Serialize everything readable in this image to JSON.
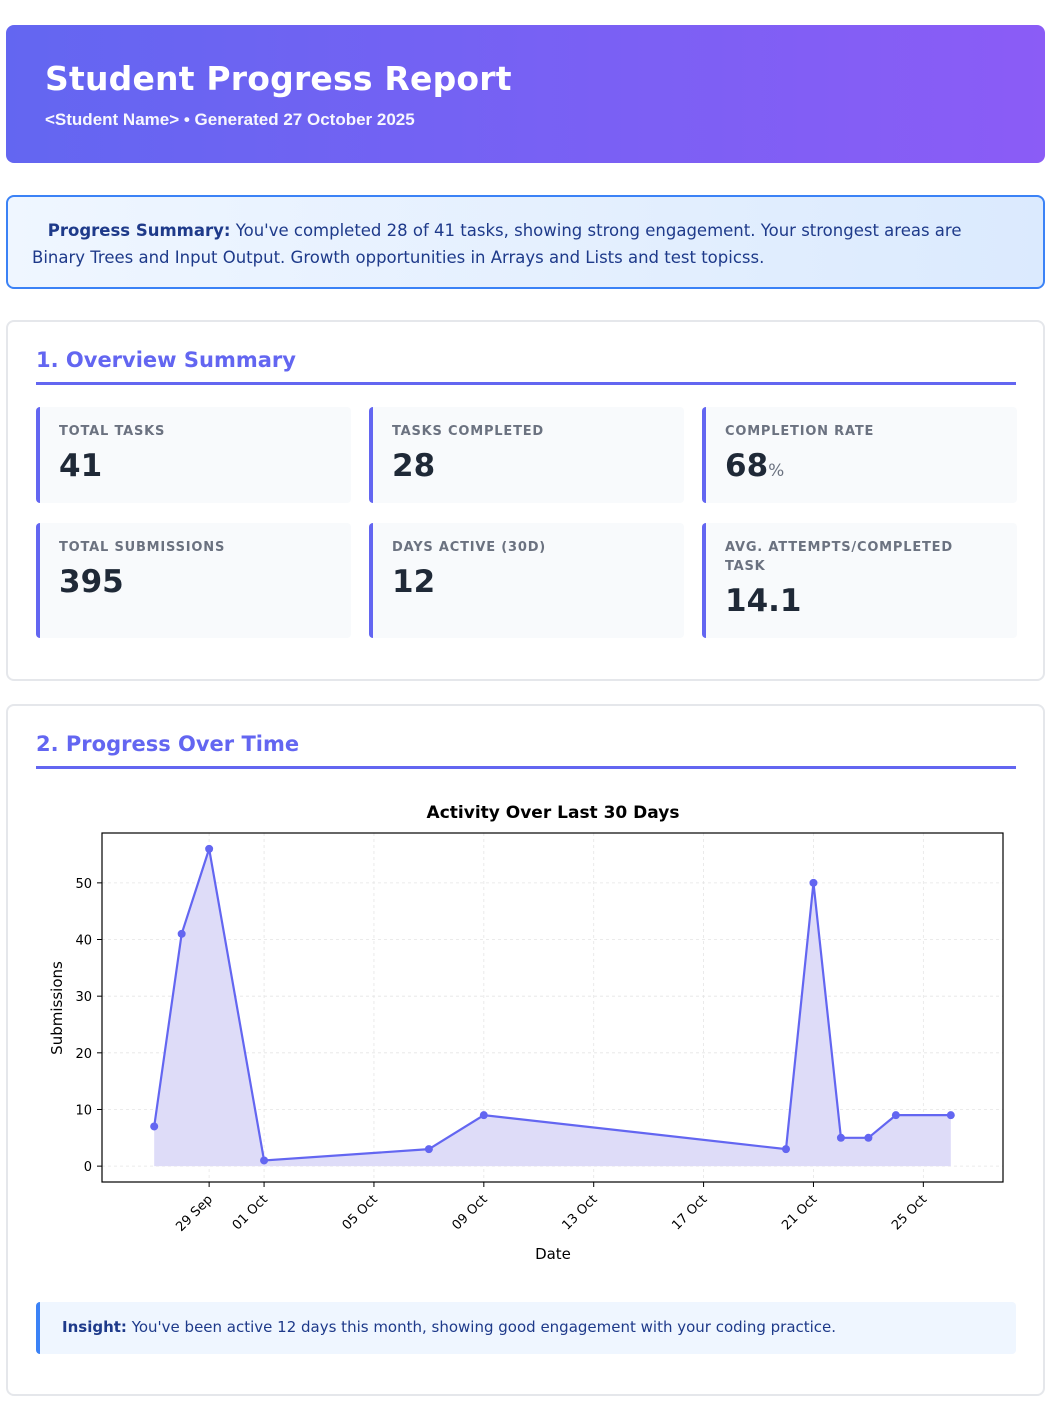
{
  "header": {
    "title": "Student Progress Report",
    "subtitle": "<Student Name> • Generated 27 October 2025"
  },
  "summary": {
    "label": "Progress Summary:",
    "text": " You've completed 28 of 41 tasks, showing strong engagement. Your strongest areas are Binary Trees and Input Output. Growth opportunities in Arrays and Lists and test topicss."
  },
  "overview": {
    "title": "1. Overview Summary",
    "stats": [
      {
        "label": "Total Tasks",
        "value": "41",
        "unit": ""
      },
      {
        "label": "Tasks Completed",
        "value": "28",
        "unit": ""
      },
      {
        "label": "Completion Rate",
        "value": "68",
        "unit": "%"
      },
      {
        "label": "Total Submissions",
        "value": "395",
        "unit": ""
      },
      {
        "label": "Days Active (30D)",
        "value": "12",
        "unit": ""
      },
      {
        "label": "Avg. Attempts/Completed Task",
        "value": "14.1",
        "unit": ""
      }
    ]
  },
  "progress": {
    "title": "2. Progress Over Time",
    "insight_label": "Insight:",
    "insight_text": " You've been active 12 days this month, showing good engagement with your coding practice."
  },
  "chart_data": {
    "type": "area",
    "title": "Activity Over Last 30 Days",
    "xlabel": "Date",
    "ylabel": "Submissions",
    "x": [
      "2025-09-27",
      "2025-09-28",
      "2025-09-29",
      "2025-10-01",
      "2025-10-07",
      "2025-10-09",
      "2025-10-20",
      "2025-10-21",
      "2025-10-22",
      "2025-10-23",
      "2025-10-24",
      "2025-10-26"
    ],
    "series": [
      {
        "values": [
          7,
          41,
          56,
          1,
          3,
          9,
          3,
          50,
          5,
          5,
          9,
          9
        ]
      }
    ],
    "x_ticks": [
      "29 Sep",
      "01 Oct",
      "05 Oct",
      "09 Oct",
      "13 Oct",
      "17 Oct",
      "21 Oct",
      "25 Oct"
    ],
    "x_tick_dates": [
      "2025-09-29",
      "2025-10-01",
      "2025-10-05",
      "2025-10-09",
      "2025-10-13",
      "2025-10-17",
      "2025-10-21",
      "2025-10-25"
    ],
    "y_ticks": [
      0,
      10,
      20,
      30,
      40,
      50
    ],
    "xlim": [
      "2025-09-25T02:24",
      "2025-10-27T21:36"
    ],
    "ylim": [
      -2.8,
      58.8
    ],
    "grid": true,
    "colors": {
      "line": "#6366f1",
      "fill": "#dedcf8"
    }
  }
}
